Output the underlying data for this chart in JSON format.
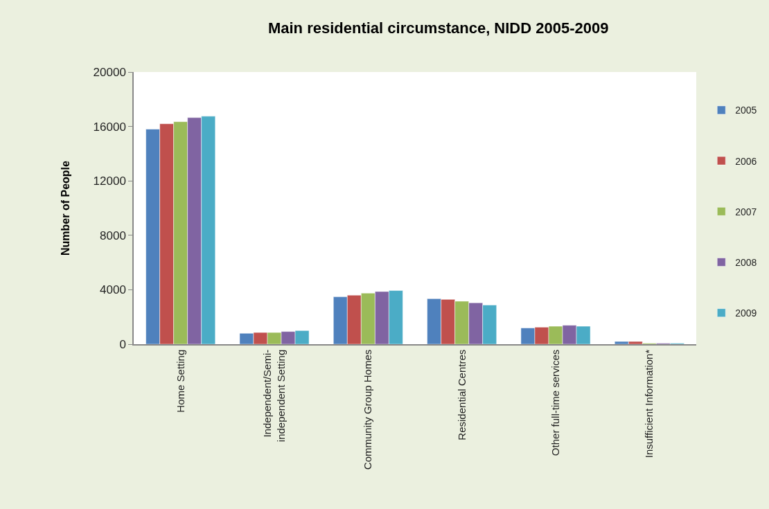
{
  "chart_data": {
    "type": "bar",
    "title": "Main residential circumstance, NIDD 2005-2009",
    "ylabel": "Number of People",
    "categories": [
      "Home Setting",
      "Independent/Semi-independent Setting",
      "Community Group Homes",
      "Residential Centres",
      "Other full-time services",
      "Insufficient Information*"
    ],
    "series": [
      {
        "name": "2005",
        "color": "#4f81bd",
        "values": [
          15800,
          800,
          3480,
          3340,
          1190,
          200
        ]
      },
      {
        "name": "2006",
        "color": "#c0504d",
        "values": [
          16200,
          860,
          3600,
          3290,
          1250,
          200
        ]
      },
      {
        "name": "2007",
        "color": "#9bbb59",
        "values": [
          16350,
          860,
          3750,
          3160,
          1320,
          70
        ]
      },
      {
        "name": "2008",
        "color": "#8064a2",
        "values": [
          16650,
          930,
          3870,
          3040,
          1390,
          70
        ]
      },
      {
        "name": "2009",
        "color": "#4bacc6",
        "values": [
          16750,
          1000,
          3940,
          2880,
          1320,
          70
        ]
      }
    ],
    "ylim": [
      0,
      20000
    ],
    "yticks": [
      0,
      4000,
      8000,
      12000,
      16000,
      20000
    ],
    "grid": false,
    "legend": "right"
  }
}
